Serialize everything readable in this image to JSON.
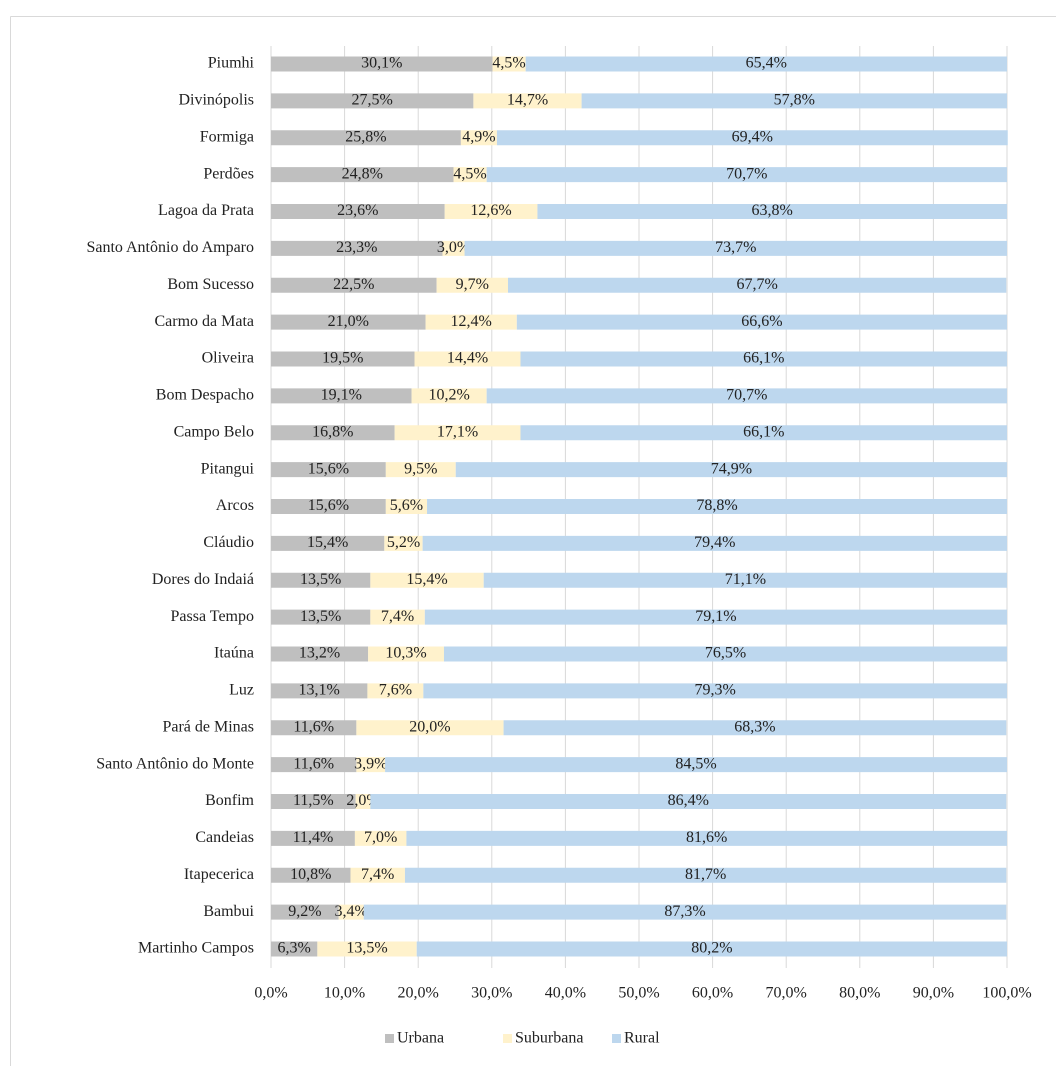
{
  "chart_data": {
    "type": "stacked_bar_horizontal",
    "categories": [
      "Piumhi",
      "Divinópolis",
      "Formiga",
      "Perdões",
      "Lagoa da Prata",
      "Santo Antônio do Amparo",
      "Bom Sucesso",
      "Carmo da Mata",
      "Oliveira",
      "Bom Despacho",
      "Campo Belo",
      "Pitangui",
      "Arcos",
      "Cláudio",
      "Dores do Indaiá",
      "Passa Tempo",
      "Itaúna",
      "Luz",
      "Pará de Minas",
      "Santo Antônio do Monte",
      "Bonfim",
      "Candeias",
      "Itapecerica",
      "Bambui",
      "Martinho Campos"
    ],
    "series": [
      {
        "name": "Urbana",
        "color": "#bfbfbf",
        "values": [
          30.1,
          27.5,
          25.8,
          24.8,
          23.6,
          23.3,
          22.5,
          21.0,
          19.5,
          19.1,
          16.8,
          15.6,
          15.6,
          15.4,
          13.5,
          13.5,
          13.2,
          13.1,
          11.6,
          11.6,
          11.5,
          11.4,
          10.8,
          9.2,
          6.3
        ],
        "value_labels": [
          "30,1%",
          "27,5%",
          "25,8%",
          "24,8%",
          "23,6%",
          "23,3%",
          "22,5%",
          "21,0%",
          "19,5%",
          "19,1%",
          "16,8%",
          "15,6%",
          "15,6%",
          "15,4%",
          "13,5%",
          "13,5%",
          "13,2%",
          "13,1%",
          "11,6%",
          "11,6%",
          "11,5%",
          "11,4%",
          "10,8%",
          "9,2%",
          "6,3%"
        ]
      },
      {
        "name": "Suburbana",
        "color": "#fff2cc",
        "values": [
          4.5,
          14.7,
          4.9,
          4.5,
          12.6,
          3.0,
          9.7,
          12.4,
          14.4,
          10.2,
          17.1,
          9.5,
          5.6,
          5.2,
          15.4,
          7.4,
          10.3,
          7.6,
          20.0,
          3.9,
          2.0,
          7.0,
          7.4,
          3.4,
          13.5
        ],
        "value_labels": [
          "4,5%",
          "14,7%",
          "4,9%",
          "4,5%",
          "12,6%",
          "3,0%",
          "9,7%",
          "12,4%",
          "14,4%",
          "10,2%",
          "17,1%",
          "9,5%",
          "5,6%",
          "5,2%",
          "15,4%",
          "7,4%",
          "10,3%",
          "7,6%",
          "20,0%",
          "3,9%",
          "2,0%",
          "7,0%",
          "7,4%",
          "3,4%",
          "13,5%"
        ]
      },
      {
        "name": "Rural",
        "color": "#bdd7ee",
        "values": [
          65.4,
          57.8,
          69.4,
          70.7,
          63.8,
          73.7,
          67.7,
          66.6,
          66.1,
          70.7,
          66.1,
          74.9,
          78.8,
          79.4,
          71.1,
          79.1,
          76.5,
          79.3,
          68.3,
          84.5,
          86.4,
          81.6,
          81.7,
          87.3,
          80.2
        ],
        "value_labels": [
          "65,4%",
          "57,8%",
          "69,4%",
          "70,7%",
          "63,8%",
          "73,7%",
          "67,7%",
          "66,6%",
          "66,1%",
          "70,7%",
          "66,1%",
          "74,9%",
          "78,8%",
          "79,4%",
          "71,1%",
          "79,1%",
          "76,5%",
          "79,3%",
          "68,3%",
          "84,5%",
          "86,4%",
          "81,6%",
          "81,7%",
          "87,3%",
          "80,2%"
        ]
      }
    ],
    "xlim": [
      0,
      100
    ],
    "xticks": [
      {
        "value": 0,
        "label": "0,0%"
      },
      {
        "value": 10,
        "label": "10,0%"
      },
      {
        "value": 20,
        "label": "20,0%"
      },
      {
        "value": 30,
        "label": "30,0%"
      },
      {
        "value": 40,
        "label": "40,0%"
      },
      {
        "value": 50,
        "label": "50,0%"
      },
      {
        "value": 60,
        "label": "60,0%"
      },
      {
        "value": 70,
        "label": "70,0%"
      },
      {
        "value": 80,
        "label": "80,0%"
      },
      {
        "value": 90,
        "label": "90,0%"
      },
      {
        "value": 100,
        "label": "100,0%"
      }
    ],
    "grid": true,
    "legend": "bottom"
  }
}
